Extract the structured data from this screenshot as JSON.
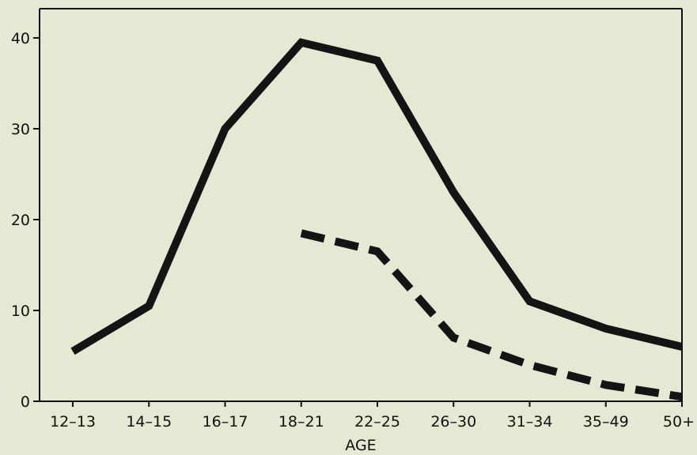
{
  "chart_data": {
    "type": "line",
    "title": "",
    "xlabel": "AGE",
    "ylabel": "",
    "categories": [
      "12–13",
      "14–15",
      "16–17",
      "18–21",
      "22–25",
      "26–30",
      "31–34",
      "35–49",
      "50+"
    ],
    "ylim": [
      0,
      43
    ],
    "yticks": [
      0,
      10,
      20,
      30,
      40
    ],
    "grid": false,
    "legend": "none",
    "series": [
      {
        "style": "solid",
        "color": "#141414",
        "values": [
          5.5,
          10.5,
          30,
          39.5,
          37.5,
          23,
          11,
          8,
          6
        ]
      },
      {
        "style": "dashed",
        "color": "#141414",
        "values": [
          null,
          null,
          null,
          18.5,
          16.5,
          7,
          4,
          1.8,
          0.5
        ]
      }
    ]
  }
}
